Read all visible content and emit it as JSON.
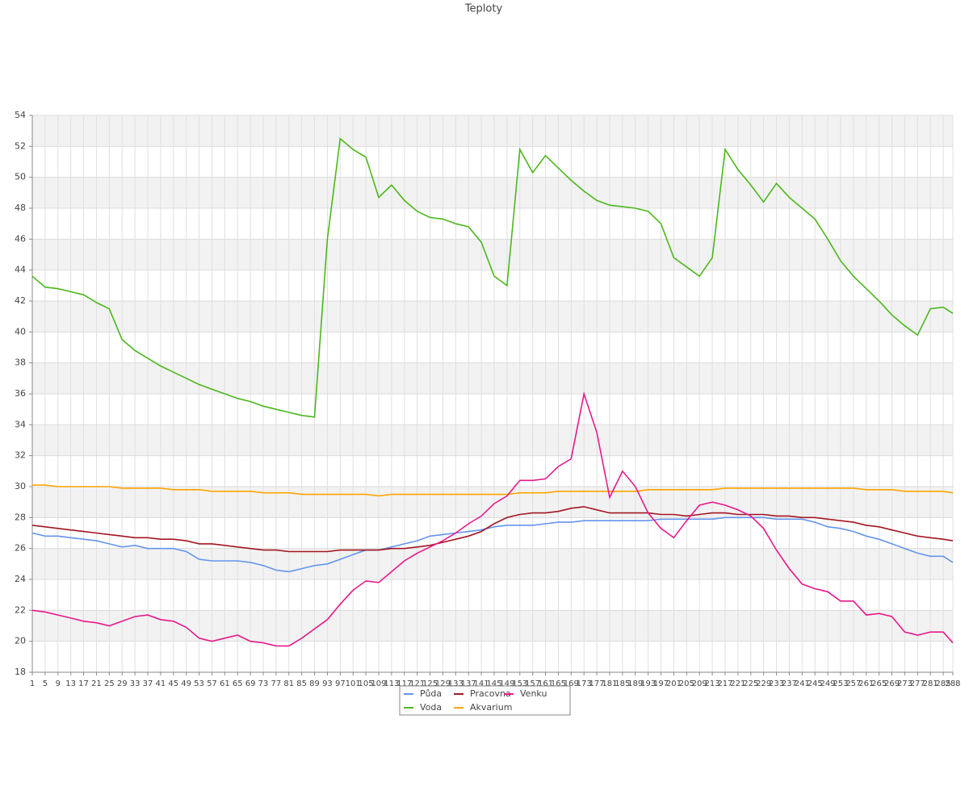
{
  "chart_data": {
    "type": "line",
    "title": "Teploty",
    "x": [
      1,
      5,
      9,
      13,
      17,
      21,
      25,
      29,
      33,
      37,
      41,
      45,
      49,
      53,
      57,
      61,
      65,
      69,
      73,
      77,
      81,
      85,
      89,
      93,
      97,
      101,
      105,
      109,
      113,
      117,
      121,
      125,
      129,
      133,
      137,
      141,
      145,
      149,
      153,
      157,
      161,
      165,
      169,
      173,
      177,
      181,
      185,
      189,
      193,
      197,
      201,
      205,
      209,
      213,
      217,
      221,
      225,
      229,
      233,
      237,
      241,
      245,
      249,
      253,
      257,
      261,
      265,
      269,
      273,
      277,
      281,
      285,
      288
    ],
    "xlim": [
      1,
      288
    ],
    "ylim": [
      18,
      54
    ],
    "yticks": [
      18,
      20,
      22,
      24,
      26,
      28,
      30,
      32,
      34,
      36,
      38,
      40,
      42,
      44,
      46,
      48,
      50,
      52,
      54
    ],
    "grid": true,
    "legend": "bottom",
    "series": [
      {
        "name": "Půda",
        "color": "#6495ed",
        "values": [
          27.0,
          26.8,
          26.8,
          26.7,
          26.6,
          26.5,
          26.3,
          26.1,
          26.2,
          26.0,
          26.0,
          26.0,
          25.8,
          25.3,
          25.2,
          25.2,
          25.2,
          25.1,
          24.9,
          24.6,
          24.5,
          24.7,
          24.9,
          25.0,
          25.3,
          25.6,
          25.9,
          25.9,
          26.1,
          26.3,
          26.5,
          26.8,
          26.9,
          27.0,
          27.1,
          27.2,
          27.4,
          27.5,
          27.5,
          27.5,
          27.6,
          27.7,
          27.7,
          27.8,
          27.8,
          27.8,
          27.8,
          27.8,
          27.8,
          27.9,
          27.9,
          27.9,
          27.9,
          27.9,
          28.0,
          28.0,
          28.0,
          28.0,
          27.9,
          27.9,
          27.9,
          27.7,
          27.4,
          27.3,
          27.1,
          26.8,
          26.6,
          26.3,
          26.0,
          25.7,
          25.5,
          25.5,
          25.1
        ]
      },
      {
        "name": "Voda",
        "color": "#4cb71c",
        "values": [
          43.6,
          42.9,
          42.8,
          42.6,
          42.4,
          41.9,
          41.5,
          39.5,
          38.8,
          38.3,
          37.8,
          37.4,
          37.0,
          36.6,
          36.3,
          36.0,
          35.7,
          35.5,
          35.2,
          35.0,
          34.8,
          34.6,
          34.5,
          46.0,
          52.5,
          51.8,
          51.3,
          48.7,
          49.5,
          48.5,
          47.8,
          47.4,
          47.3,
          47.0,
          46.8,
          45.8,
          43.6,
          43.0,
          51.8,
          50.3,
          51.4,
          50.6,
          49.8,
          49.1,
          48.5,
          48.2,
          48.1,
          48.0,
          47.8,
          47.0,
          44.8,
          44.2,
          43.6,
          44.8,
          51.8,
          50.5,
          49.5,
          48.4,
          49.6,
          48.7,
          48.0,
          47.3,
          46.0,
          44.6,
          43.6,
          42.8,
          42.0,
          41.1,
          40.4,
          39.8,
          41.5,
          41.6,
          41.2
        ]
      },
      {
        "name": "Pracovna",
        "color": "#a31621",
        "values": [
          27.5,
          27.4,
          27.3,
          27.2,
          27.1,
          27.0,
          26.9,
          26.8,
          26.7,
          26.7,
          26.6,
          26.6,
          26.5,
          26.3,
          26.3,
          26.2,
          26.1,
          26.0,
          25.9,
          25.9,
          25.8,
          25.8,
          25.8,
          25.8,
          25.9,
          25.9,
          25.9,
          25.9,
          26.0,
          26.0,
          26.1,
          26.2,
          26.4,
          26.6,
          26.8,
          27.1,
          27.6,
          28.0,
          28.2,
          28.3,
          28.3,
          28.4,
          28.6,
          28.7,
          28.5,
          28.3,
          28.3,
          28.3,
          28.3,
          28.2,
          28.2,
          28.1,
          28.2,
          28.3,
          28.3,
          28.2,
          28.2,
          28.2,
          28.1,
          28.1,
          28.0,
          28.0,
          27.9,
          27.8,
          27.7,
          27.5,
          27.4,
          27.2,
          27.0,
          26.8,
          26.7,
          26.6,
          26.5
        ]
      },
      {
        "name": "Akvarium",
        "color": "#ffa500",
        "values": [
          30.1,
          30.1,
          30.0,
          30.0,
          30.0,
          30.0,
          30.0,
          29.9,
          29.9,
          29.9,
          29.9,
          29.8,
          29.8,
          29.8,
          29.7,
          29.7,
          29.7,
          29.7,
          29.6,
          29.6,
          29.6,
          29.5,
          29.5,
          29.5,
          29.5,
          29.5,
          29.5,
          29.4,
          29.5,
          29.5,
          29.5,
          29.5,
          29.5,
          29.5,
          29.5,
          29.5,
          29.5,
          29.5,
          29.6,
          29.6,
          29.6,
          29.7,
          29.7,
          29.7,
          29.7,
          29.7,
          29.7,
          29.7,
          29.8,
          29.8,
          29.8,
          29.8,
          29.8,
          29.8,
          29.9,
          29.9,
          29.9,
          29.9,
          29.9,
          29.9,
          29.9,
          29.9,
          29.9,
          29.9,
          29.9,
          29.8,
          29.8,
          29.8,
          29.7,
          29.7,
          29.7,
          29.7,
          29.6
        ]
      },
      {
        "name": "Venku",
        "color": "#e8198b",
        "values": [
          22.0,
          21.9,
          21.7,
          21.5,
          21.3,
          21.2,
          21.0,
          21.3,
          21.6,
          21.7,
          21.4,
          21.3,
          20.9,
          20.2,
          20.0,
          20.2,
          20.4,
          20.0,
          19.9,
          19.7,
          19.7,
          20.2,
          20.8,
          21.4,
          22.4,
          23.3,
          23.9,
          23.8,
          24.5,
          25.2,
          25.7,
          26.1,
          26.5,
          27.0,
          27.6,
          28.1,
          28.9,
          29.4,
          30.4,
          30.4,
          30.5,
          31.3,
          31.8,
          36.0,
          33.5,
          29.3,
          31.0,
          30.0,
          28.3,
          27.3,
          26.7,
          27.8,
          28.8,
          29.0,
          28.8,
          28.5,
          28.1,
          27.3,
          25.9,
          24.7,
          23.7,
          23.4,
          23.2,
          22.6,
          22.6,
          21.7,
          21.8,
          21.6,
          20.6,
          20.4,
          20.6,
          20.6,
          19.9
        ]
      }
    ]
  }
}
